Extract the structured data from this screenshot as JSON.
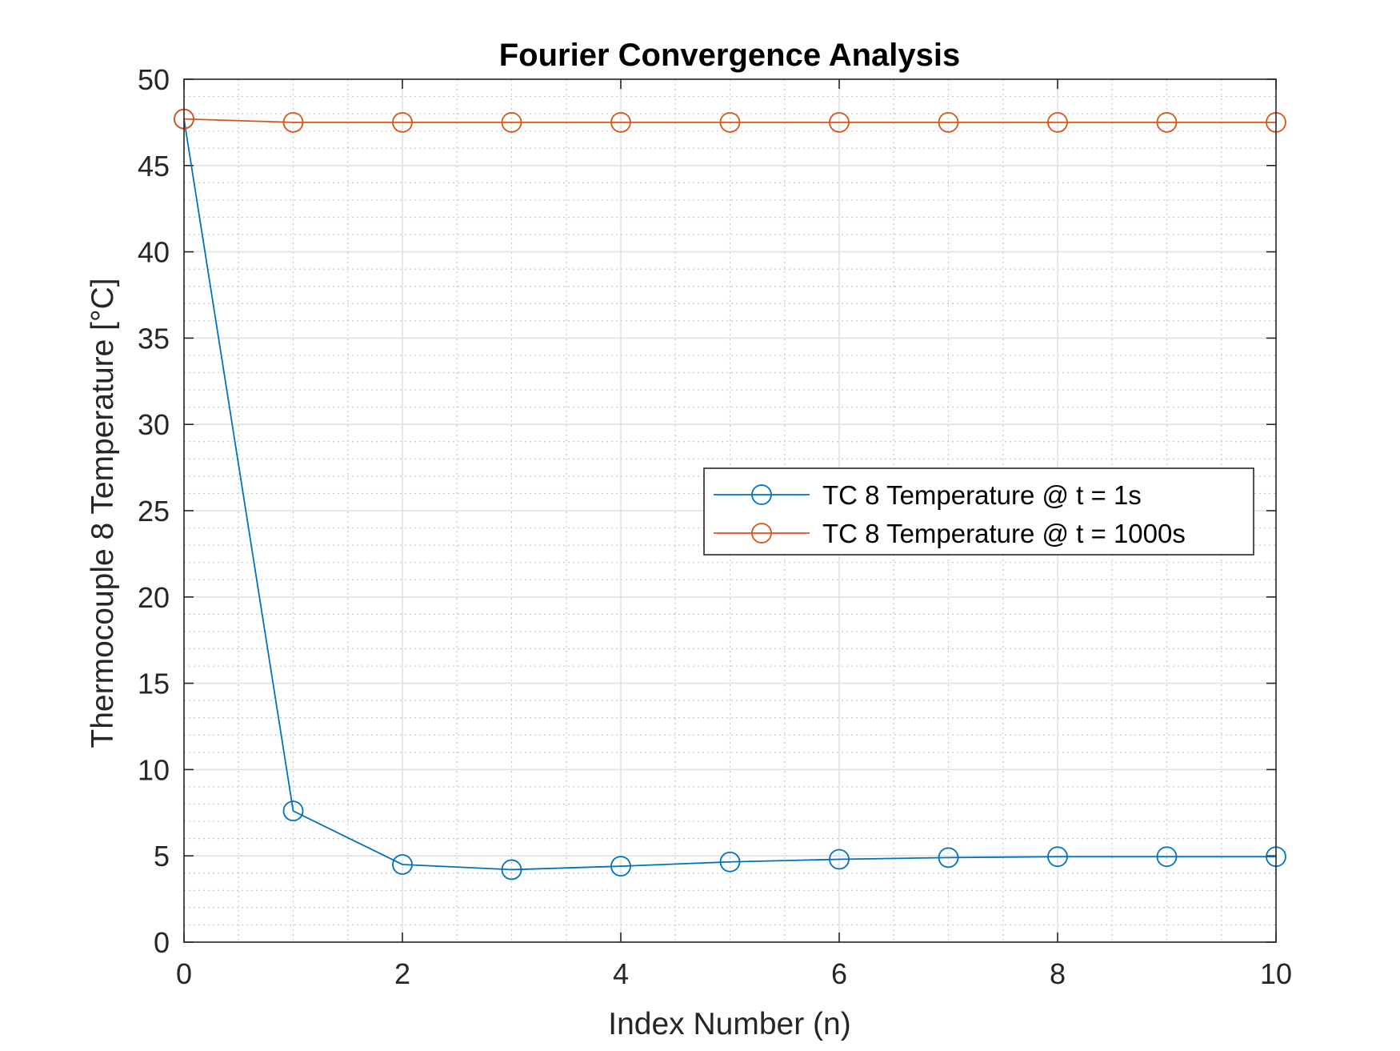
{
  "chart_data": {
    "type": "line",
    "title": "Fourier Convergence Analysis",
    "xlabel": "Index Number (n)",
    "ylabel": "Thermocouple 8 Temperature [°C]",
    "xlim": [
      0,
      10
    ],
    "ylim": [
      0,
      50
    ],
    "x_ticks": [
      0,
      2,
      4,
      6,
      8,
      10
    ],
    "y_ticks": [
      0,
      5,
      10,
      15,
      20,
      25,
      30,
      35,
      40,
      45,
      50
    ],
    "x_tick_labels": [
      "0",
      "2",
      "4",
      "6",
      "8",
      "10"
    ],
    "y_tick_labels": [
      "0",
      "5",
      "10",
      "15",
      "20",
      "25",
      "30",
      "35",
      "40",
      "45",
      "50"
    ],
    "grid": true,
    "minor_grid": true,
    "legend_position": "center-right",
    "marker": "open-circle",
    "x": [
      0,
      1,
      2,
      3,
      4,
      5,
      6,
      7,
      8,
      9,
      10
    ],
    "series": [
      {
        "name": "TC 8 Temperature @ t = 1s",
        "color": "#0072BD",
        "values": [
          47.7,
          7.6,
          4.5,
          4.2,
          4.4,
          4.65,
          4.8,
          4.9,
          4.95,
          4.95,
          4.95
        ]
      },
      {
        "name": "TC 8 Temperature @ t = 1000s",
        "color": "#D95319",
        "values": [
          47.7,
          47.5,
          47.5,
          47.5,
          47.5,
          47.5,
          47.5,
          47.5,
          47.5,
          47.5,
          47.5
        ]
      }
    ]
  }
}
